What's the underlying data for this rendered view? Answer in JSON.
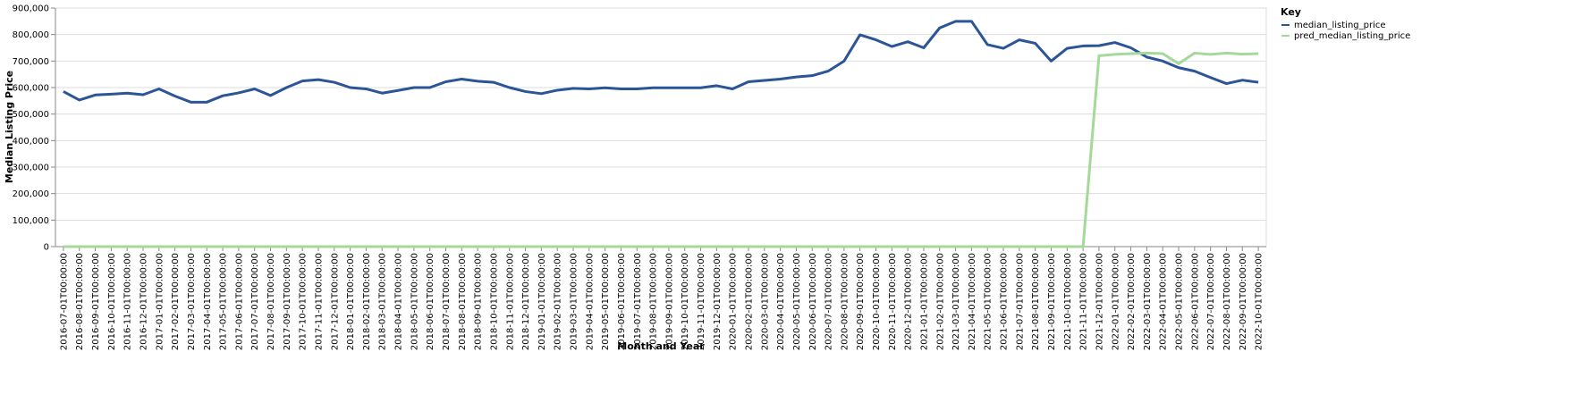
{
  "chart_data": {
    "type": "line",
    "xlabel": "Month and Year",
    "ylabel": "Median Listing Price",
    "legend_title": "Key",
    "legend": "right",
    "grid": true,
    "categories": [
      "2016-07-01T00:00:00",
      "2016-08-01T00:00:00",
      "2016-09-01T00:00:00",
      "2016-10-01T00:00:00",
      "2016-11-01T00:00:00",
      "2016-12-01T00:00:00",
      "2017-01-01T00:00:00",
      "2017-02-01T00:00:00",
      "2017-03-01T00:00:00",
      "2017-04-01T00:00:00",
      "2017-05-01T00:00:00",
      "2017-06-01T00:00:00",
      "2017-07-01T00:00:00",
      "2017-08-01T00:00:00",
      "2017-09-01T00:00:00",
      "2017-10-01T00:00:00",
      "2017-11-01T00:00:00",
      "2017-12-01T00:00:00",
      "2018-01-01T00:00:00",
      "2018-02-01T00:00:00",
      "2018-03-01T00:00:00",
      "2018-04-01T00:00:00",
      "2018-05-01T00:00:00",
      "2018-06-01T00:00:00",
      "2018-07-01T00:00:00",
      "2018-08-01T00:00:00",
      "2018-09-01T00:00:00",
      "2018-10-01T00:00:00",
      "2018-11-01T00:00:00",
      "2018-12-01T00:00:00",
      "2019-01-01T00:00:00",
      "2019-02-01T00:00:00",
      "2019-03-01T00:00:00",
      "2019-04-01T00:00:00",
      "2019-05-01T00:00:00",
      "2019-06-01T00:00:00",
      "2019-07-01T00:00:00",
      "2019-08-01T00:00:00",
      "2019-09-01T00:00:00",
      "2019-10-01T00:00:00",
      "2019-11-01T00:00:00",
      "2019-12-01T00:00:00",
      "2020-01-01T00:00:00",
      "2020-02-01T00:00:00",
      "2020-03-01T00:00:00",
      "2020-04-01T00:00:00",
      "2020-05-01T00:00:00",
      "2020-06-01T00:00:00",
      "2020-07-01T00:00:00",
      "2020-08-01T00:00:00",
      "2020-09-01T00:00:00",
      "2020-10-01T00:00:00",
      "2020-11-01T00:00:00",
      "2020-12-01T00:00:00",
      "2021-01-01T00:00:00",
      "2021-02-01T00:00:00",
      "2021-03-01T00:00:00",
      "2021-04-01T00:00:00",
      "2021-05-01T00:00:00",
      "2021-06-01T00:00:00",
      "2021-07-01T00:00:00",
      "2021-08-01T00:00:00",
      "2021-09-01T00:00:00",
      "2021-10-01T00:00:00",
      "2021-11-01T00:00:00",
      "2021-12-01T00:00:00",
      "2022-01-01T00:00:00",
      "2022-02-01T00:00:00",
      "2022-03-01T00:00:00",
      "2022-04-01T00:00:00",
      "2022-05-01T00:00:00",
      "2022-06-01T00:00:00",
      "2022-07-01T00:00:00",
      "2022-08-01T00:00:00",
      "2022-09-01T00:00:00",
      "2022-10-01T00:00:00"
    ],
    "series": [
      {
        "name": "median_listing_price",
        "color": "#2c5597",
        "values": [
          585000,
          553000,
          572000,
          575000,
          579000,
          573000,
          595000,
          568000,
          545000,
          545000,
          569000,
          580000,
          595000,
          570000,
          600000,
          625000,
          630000,
          620000,
          600000,
          595000,
          579000,
          589000,
          600000,
          600000,
          622000,
          632000,
          624000,
          620000,
          600000,
          585000,
          577000,
          590000,
          597000,
          595000,
          599000,
          595000,
          595000,
          599000,
          599000,
          599000,
          599000,
          607000,
          595000,
          622000,
          627000,
          632000,
          640000,
          645000,
          662000,
          700000,
          799000,
          780000,
          755000,
          773000,
          750000,
          825000,
          850000,
          850000,
          762000,
          748000,
          780000,
          767000,
          700000,
          748000,
          757000,
          758000,
          770000,
          750000,
          715000,
          700000,
          675000,
          662000,
          638000,
          615000,
          628000,
          620000
        ]
      },
      {
        "name": "pred_median_listing_price",
        "color": "#a4d99b",
        "values": [
          0,
          0,
          0,
          0,
          0,
          0,
          0,
          0,
          0,
          0,
          0,
          0,
          0,
          0,
          0,
          0,
          0,
          0,
          0,
          0,
          0,
          0,
          0,
          0,
          0,
          0,
          0,
          0,
          0,
          0,
          0,
          0,
          0,
          0,
          0,
          0,
          0,
          0,
          0,
          0,
          0,
          0,
          0,
          0,
          0,
          0,
          0,
          0,
          0,
          0,
          0,
          0,
          0,
          0,
          0,
          0,
          0,
          0,
          0,
          0,
          0,
          0,
          0,
          0,
          0,
          720000,
          725000,
          728000,
          730000,
          728000,
          690000,
          730000,
          725000,
          730000,
          726000,
          728000
        ]
      }
    ],
    "ylim": [
      0,
      900000
    ],
    "yticks": [
      {
        "value": 0,
        "label": "0"
      },
      {
        "value": 100000,
        "label": "100,000"
      },
      {
        "value": 200000,
        "label": "200,000"
      },
      {
        "value": 300000,
        "label": "300,000"
      },
      {
        "value": 400000,
        "label": "400,000"
      },
      {
        "value": 500000,
        "label": "500,000"
      },
      {
        "value": 600000,
        "label": "600,000"
      },
      {
        "value": 700000,
        "label": "700,000"
      },
      {
        "value": 800000,
        "label": "800,000"
      },
      {
        "value": 900000,
        "label": "900,000"
      }
    ]
  }
}
